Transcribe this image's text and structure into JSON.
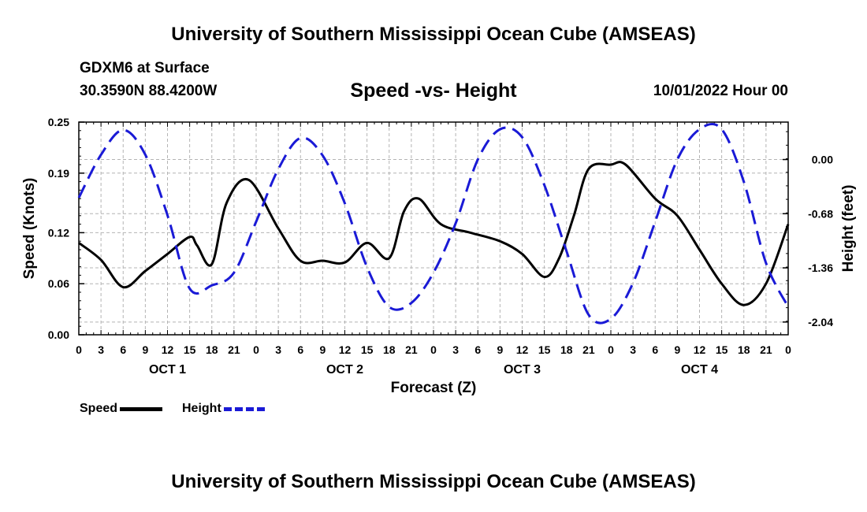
{
  "header": {
    "title_top": "University of Southern Mississippi Ocean Cube (AMSEAS)",
    "title_bottom": "University of Southern Mississippi Ocean Cube (AMSEAS)",
    "station_name": "GDXM6 at Surface",
    "station_coords": "30.3590N  88.4200W",
    "run_time": "10/01/2022 Hour 00"
  },
  "legend": {
    "speed_label": "Speed",
    "height_label": "Height"
  },
  "colors": {
    "speed": "#000000",
    "height": "#1a1ad6",
    "grid": "#b4b4b4"
  },
  "chart_data": {
    "type": "line",
    "title": "Speed -vs- Height",
    "xlabel": "Forecast (Z)",
    "ylabel_left": "Speed (Knots)",
    "ylabel_right": "Height (feet)",
    "xlim": [
      0,
      96
    ],
    "x_tick_hours": [
      0,
      3,
      6,
      9,
      12,
      15,
      18,
      21,
      24,
      27,
      30,
      33,
      36,
      39,
      42,
      45,
      48,
      51,
      54,
      57,
      60,
      63,
      66,
      69,
      72,
      75,
      78,
      81,
      84,
      87,
      90,
      93,
      96
    ],
    "x_tick_labels": [
      "0",
      "3",
      "6",
      "9",
      "12",
      "15",
      "18",
      "21",
      "0",
      "3",
      "6",
      "9",
      "12",
      "15",
      "18",
      "21",
      "0",
      "3",
      "6",
      "9",
      "12",
      "15",
      "18",
      "21",
      "0",
      "3",
      "6",
      "9",
      "12",
      "15",
      "18",
      "21",
      "0"
    ],
    "day_labels": [
      {
        "label": "OCT 1",
        "hour": 12
      },
      {
        "label": "OCT 2",
        "hour": 36
      },
      {
        "label": "OCT 3",
        "hour": 60
      },
      {
        "label": "OCT 4",
        "hour": 84
      }
    ],
    "left_axis": {
      "ylim": [
        0,
        0.25
      ],
      "ticks": [
        0.0,
        0.06,
        0.12,
        0.19,
        0.25
      ],
      "tick_labels": [
        "0.00",
        "0.06",
        "0.12",
        "0.19",
        "0.25"
      ]
    },
    "right_axis": {
      "ylim": [
        -2.2,
        0.47
      ],
      "ticks": [
        0.0,
        -0.68,
        -1.36,
        -2.04
      ],
      "tick_labels": [
        "0.00",
        "-0.68",
        "-1.36",
        "-2.04"
      ]
    },
    "series": [
      {
        "name": "Speed",
        "axis": "left",
        "style": "solid",
        "x": [
          0,
          3,
          6,
          9,
          12,
          15,
          16,
          18,
          20,
          23,
          27,
          30,
          33,
          36,
          39,
          42,
          44,
          46,
          49,
          53,
          57,
          60,
          63,
          65,
          67,
          69,
          72,
          74,
          78,
          81,
          84,
          87,
          90,
          93,
          96
        ],
        "values": [
          0.108,
          0.088,
          0.056,
          0.075,
          0.095,
          0.115,
          0.105,
          0.083,
          0.155,
          0.182,
          0.125,
          0.087,
          0.087,
          0.085,
          0.108,
          0.09,
          0.145,
          0.16,
          0.13,
          0.12,
          0.11,
          0.095,
          0.068,
          0.09,
          0.14,
          0.195,
          0.2,
          0.2,
          0.16,
          0.14,
          0.1,
          0.06,
          0.035,
          0.06,
          0.13
        ]
      },
      {
        "name": "Height",
        "axis": "right",
        "style": "dashed",
        "x": [
          0,
          3,
          6,
          9,
          12,
          15,
          18,
          21,
          24,
          27,
          30,
          33,
          36,
          39,
          42,
          45,
          48,
          51,
          54,
          57,
          60,
          63,
          66,
          69,
          72,
          75,
          78,
          81,
          84,
          87,
          90,
          93,
          96
        ],
        "values": [
          -0.48,
          0.06,
          0.37,
          0.06,
          -0.7,
          -1.62,
          -1.58,
          -1.42,
          -0.78,
          -0.12,
          0.27,
          0.05,
          -0.55,
          -1.35,
          -1.85,
          -1.8,
          -1.42,
          -0.8,
          0.0,
          0.38,
          0.28,
          -0.32,
          -1.15,
          -1.95,
          -2.0,
          -1.55,
          -0.78,
          0.0,
          0.38,
          0.38,
          -0.28,
          -1.3,
          -1.85
        ]
      }
    ]
  }
}
